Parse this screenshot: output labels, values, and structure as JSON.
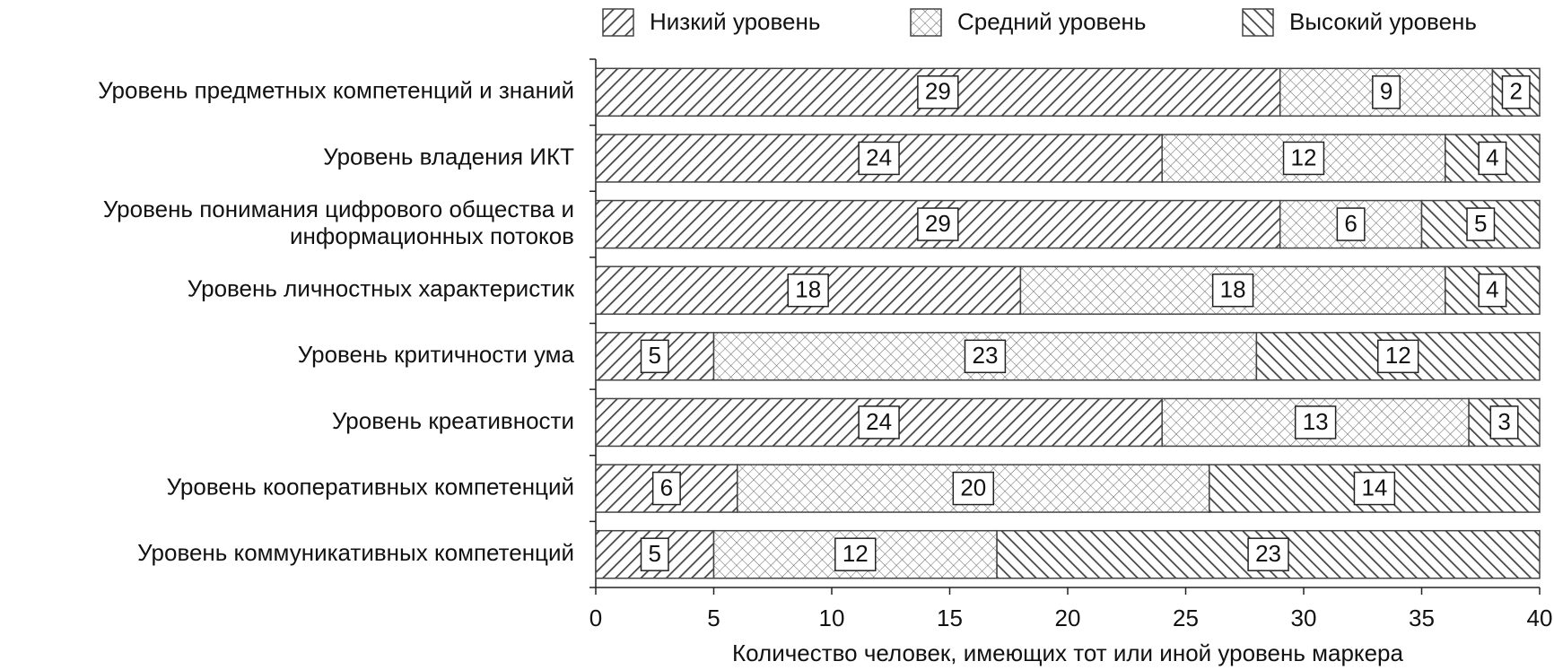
{
  "chart_data": {
    "type": "stacked-barh",
    "categories": [
      "Уровень предметных компетенций и знаний",
      "Уровень владения ИКТ",
      "Уровень понимания цифрового общества и информационных потоков",
      "Уровень личностных характеристик",
      "Уровень критичности ума",
      "Уровень креативности",
      "Уровень кооперативных компетенций",
      "Уровень коммуникативных компетенций"
    ],
    "series": [
      {
        "name": "Низкий уровень",
        "color": "#444444",
        "pattern": "diagonal",
        "values": [
          29,
          24,
          29,
          18,
          5,
          24,
          6,
          5
        ]
      },
      {
        "name": "Средний уровень",
        "color": "#444444",
        "pattern": "crosshatch",
        "values": [
          9,
          12,
          6,
          18,
          23,
          13,
          20,
          12
        ]
      },
      {
        "name": "Высокий уровень",
        "color": "#444444",
        "pattern": "back-diagonal",
        "values": [
          2,
          4,
          5,
          4,
          12,
          3,
          14,
          23
        ]
      }
    ],
    "x_label": "Количество человек, имеющих тот или иной уровень маркера",
    "xlim": [
      0,
      40
    ],
    "xticks": [
      0,
      5,
      10,
      15,
      20,
      25,
      30,
      35,
      40
    ],
    "legend": "top",
    "data_labels": true
  }
}
